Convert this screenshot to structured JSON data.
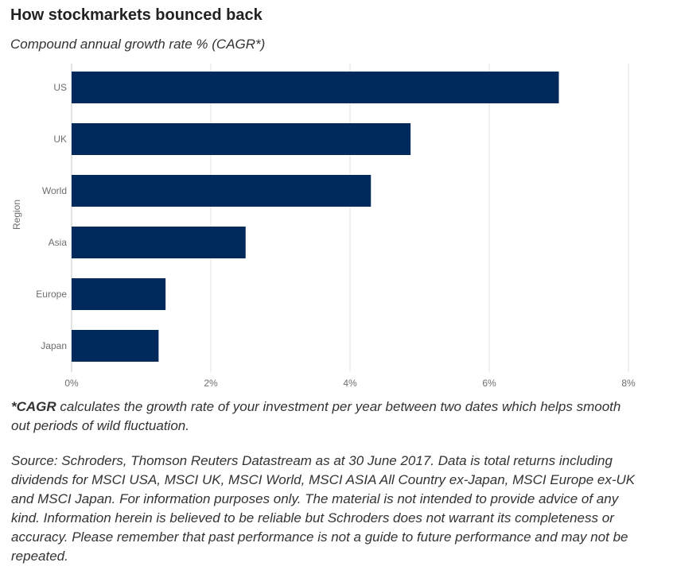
{
  "header": {
    "title": "How stockmarkets bounced back",
    "subtitle": "Compound annual growth rate % (CAGR*)"
  },
  "chart_data": {
    "type": "bar",
    "orientation": "horizontal",
    "categories": [
      "US",
      "UK",
      "World",
      "Asia",
      "Europe",
      "Japan"
    ],
    "values": [
      7.0,
      4.87,
      4.3,
      2.5,
      1.35,
      1.25
    ],
    "ylabel": "Region",
    "xlim": [
      0,
      8
    ],
    "x_ticks": [
      0,
      2,
      4,
      6,
      8
    ],
    "x_tick_labels": [
      "0%",
      "2%",
      "4%",
      "6%",
      "8%"
    ],
    "grid": "vertical",
    "bar_color": "#00295c"
  },
  "footnote": {
    "term": "*CAGR",
    "text": " calculates the growth rate of your investment per year between two dates which helps smooth out periods of wild fluctuation."
  },
  "source": {
    "text": "Source: Schroders, Thomson Reuters Datastream as at 30 June 2017. Data is total returns including dividends for MSCI USA, MSCI UK, MSCI World, MSCI ASIA All Country ex-Japan, MSCI Europe ex-UK and MSCI Japan. For information purposes only. The material is not intended to provide advice of any kind. Information herein is believed to be reliable but Schroders does not warrant its completeness or accuracy. Please remember that past performance is not a guide to future performance and may not be repeated."
  }
}
